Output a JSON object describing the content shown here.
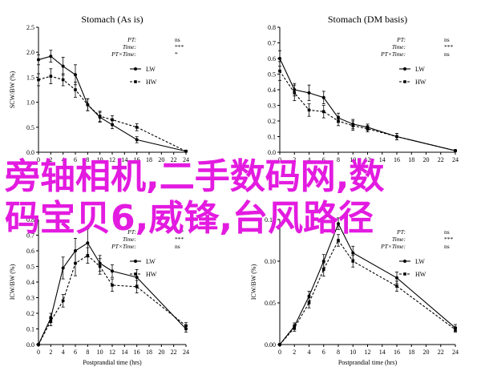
{
  "overlay": {
    "line1": "旁轴相机,二手数码网,数",
    "line2": "码宝贝6,威锋,台风路径",
    "color": "#e31be0"
  },
  "chart_data": [
    {
      "type": "line",
      "title": "Stomach (As is)",
      "ylabel": "SCW/BW (%)",
      "xlabel": "",
      "x": [
        0,
        2,
        4,
        6,
        8,
        10,
        12,
        16,
        24
      ],
      "xticks": [
        0,
        2,
        4,
        6,
        8,
        10,
        12,
        14,
        16,
        18,
        20,
        22,
        24
      ],
      "ylim": [
        0,
        2.5
      ],
      "yticks": [
        "0.0",
        "0.5",
        "1.0",
        "1.5",
        "2.0",
        "2.5"
      ],
      "series": [
        {
          "name": "LW",
          "values": [
            1.85,
            1.92,
            1.72,
            1.55,
            0.95,
            0.7,
            0.55,
            0.25,
            0.02
          ],
          "err": [
            0.1,
            0.12,
            0.18,
            0.2,
            0.12,
            0.1,
            0.08,
            0.06,
            0.01
          ]
        },
        {
          "name": "HW",
          "values": [
            1.45,
            1.52,
            1.45,
            1.25,
            0.95,
            0.72,
            0.65,
            0.5,
            0.02
          ],
          "err": [
            0.12,
            0.15,
            0.12,
            0.15,
            0.12,
            0.1,
            0.08,
            0.07,
            0.01
          ]
        }
      ],
      "stats": [
        {
          "label": "PT:",
          "value": "ns"
        },
        {
          "label": "Time:",
          "value": "***"
        },
        {
          "label": "PT×Time:",
          "value": "*"
        }
      ]
    },
    {
      "type": "line",
      "title": "Stomach (DM basis)",
      "ylabel": "",
      "xlabel": "",
      "x": [
        0,
        2,
        4,
        6,
        8,
        10,
        12,
        16,
        24
      ],
      "xticks": [
        0,
        2,
        4,
        6,
        8,
        10,
        12,
        14,
        16,
        18,
        20,
        22,
        24
      ],
      "ylim": [
        0,
        0.8
      ],
      "yticks": [
        "0.0",
        "0.1",
        "0.2",
        "0.3",
        "0.4",
        "0.5",
        "0.6",
        "0.7",
        "0.8"
      ],
      "series": [
        {
          "name": "LW",
          "values": [
            0.6,
            0.4,
            0.38,
            0.35,
            0.22,
            0.18,
            0.16,
            0.1,
            0.01
          ],
          "err": [
            0.05,
            0.04,
            0.05,
            0.04,
            0.03,
            0.03,
            0.02,
            0.02,
            0.005
          ]
        },
        {
          "name": "HW",
          "values": [
            0.52,
            0.38,
            0.27,
            0.26,
            0.2,
            0.17,
            0.15,
            0.1,
            0.01
          ],
          "err": [
            0.06,
            0.05,
            0.04,
            0.04,
            0.03,
            0.03,
            0.02,
            0.02,
            0.005
          ]
        }
      ],
      "stats": [
        {
          "label": "PT:",
          "value": "ns"
        },
        {
          "label": "Time:",
          "value": "***"
        },
        {
          "label": "PT×Time:",
          "value": "ns"
        }
      ]
    },
    {
      "type": "line",
      "title": "",
      "ylabel": "ICW/BW (%)",
      "xlabel": "Postprandial time (hrs)",
      "x": [
        0,
        2,
        4,
        6,
        8,
        10,
        12,
        16,
        24
      ],
      "xticks": [
        0,
        2,
        4,
        6,
        8,
        10,
        12,
        14,
        16,
        18,
        20,
        22,
        24
      ],
      "ylim": [
        0,
        0.8
      ],
      "yticks": [
        "0.0",
        "0.1",
        "0.2",
        "0.3",
        "0.4",
        "0.5",
        "0.6",
        "0.7",
        "0.8"
      ],
      "series": [
        {
          "name": "LW",
          "values": [
            0,
            0.17,
            0.49,
            0.6,
            0.65,
            0.52,
            0.47,
            0.43,
            0.1
          ],
          "err": [
            0,
            0.03,
            0.07,
            0.08,
            0.09,
            0.05,
            0.04,
            0.05,
            0.02
          ]
        },
        {
          "name": "HW",
          "values": [
            0,
            0.15,
            0.28,
            0.52,
            0.57,
            0.5,
            0.38,
            0.37,
            0.12
          ],
          "err": [
            0,
            0.03,
            0.04,
            0.08,
            0.05,
            0.05,
            0.04,
            0.04,
            0.02
          ]
        }
      ],
      "stats": [
        {
          "label": "PT:",
          "value": "***"
        },
        {
          "label": "Time:",
          "value": "***"
        },
        {
          "label": "PT×Time:",
          "value": "ns"
        }
      ]
    },
    {
      "type": "line",
      "title": "",
      "ylabel": "ICW/BW (%)",
      "xlabel": "Postprandial time (hrs)",
      "x": [
        0,
        2,
        4,
        6,
        8,
        10,
        16,
        24
      ],
      "xticks": [
        0,
        2,
        4,
        6,
        8,
        10,
        12,
        14,
        16,
        18,
        20,
        22,
        24
      ],
      "ylim": [
        0,
        0.15
      ],
      "yticks": [
        "0.00",
        "0.05",
        "0.10",
        "0.15"
      ],
      "series": [
        {
          "name": "LW",
          "values": [
            0,
            0.022,
            0.058,
            0.1,
            0.145,
            0.11,
            0.08,
            0.02
          ],
          "err": [
            0,
            0.004,
            0.006,
            0.008,
            0.007,
            0.008,
            0.007,
            0.004
          ]
        },
        {
          "name": "HW",
          "values": [
            0,
            0.02,
            0.05,
            0.09,
            0.125,
            0.1,
            0.07,
            0.018
          ],
          "err": [
            0,
            0.004,
            0.006,
            0.008,
            0.007,
            0.007,
            0.006,
            0.003
          ]
        }
      ],
      "stats": [
        {
          "label": "PT:",
          "value": "ns"
        },
        {
          "label": "Time:",
          "value": "***"
        },
        {
          "label": "PT×Time:",
          "value": "ns"
        }
      ]
    }
  ]
}
